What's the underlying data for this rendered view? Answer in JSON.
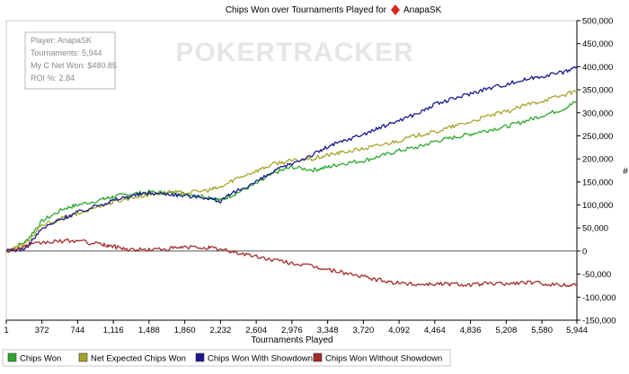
{
  "chart_data": {
    "type": "line",
    "title": "Chips Won over Tournaments Played for",
    "player_name": "AnapaSK",
    "xlabel": "Tournaments Played",
    "ylabel": "#",
    "xlim": [
      1,
      5944
    ],
    "ylim": [
      -150000,
      500000
    ],
    "x_ticks": [
      "1",
      "372",
      "744",
      "1,116",
      "1,488",
      "1,860",
      "2,232",
      "2,604",
      "2,976",
      "3,348",
      "3,720",
      "4,092",
      "4,464",
      "4,836",
      "5,208",
      "5,580",
      "5,944"
    ],
    "y_ticks": [
      "500,000",
      "450,000",
      "400,000",
      "350,000",
      "300,000",
      "250,000",
      "200,000",
      "150,000",
      "100,000",
      "50,000",
      "0",
      "-50,000",
      "-100,000",
      "-150,000"
    ],
    "grid": false,
    "legend_position": "bottom",
    "watermark": "POKERTRACKER",
    "info_box": [
      "Player: AnapaSK",
      "Tournaments: 5,944",
      "My C Net Won: $480.85",
      "ROI %: 2.84"
    ],
    "x": [
      1,
      200,
      372,
      600,
      744,
      1000,
      1116,
      1300,
      1488,
      1700,
      1860,
      2100,
      2232,
      2400,
      2604,
      2800,
      2976,
      3200,
      3348,
      3500,
      3720,
      3900,
      4092,
      4300,
      4464,
      4650,
      4836,
      5000,
      5208,
      5400,
      5580,
      5800,
      5944
    ],
    "series": [
      {
        "name": "Chips Won",
        "color": "#2ea82e",
        "values": [
          0,
          20000,
          65000,
          92000,
          100000,
          112000,
          118000,
          124000,
          128000,
          126000,
          124000,
          118000,
          110000,
          126000,
          146000,
          170000,
          182000,
          176000,
          182000,
          190000,
          196000,
          206000,
          218000,
          226000,
          238000,
          246000,
          254000,
          262000,
          270000,
          282000,
          294000,
          308000,
          325000
        ]
      },
      {
        "name": "Net Expected Chips Won",
        "color": "#a5a52c",
        "values": [
          0,
          15000,
          55000,
          72000,
          80000,
          100000,
          106000,
          116000,
          122000,
          128000,
          126000,
          132000,
          138000,
          158000,
          174000,
          190000,
          196000,
          200000,
          208000,
          214000,
          222000,
          230000,
          240000,
          252000,
          258000,
          270000,
          280000,
          292000,
          302000,
          316000,
          326000,
          338000,
          348000
        ]
      },
      {
        "name": "Chips Won With Showdown",
        "color": "#1a1a8c",
        "values": [
          0,
          5000,
          48000,
          72000,
          84000,
          102000,
          110000,
          120000,
          126000,
          124000,
          120000,
          116000,
          108000,
          130000,
          150000,
          174000,
          190000,
          210000,
          226000,
          238000,
          254000,
          268000,
          284000,
          300000,
          318000,
          330000,
          342000,
          352000,
          362000,
          372000,
          380000,
          388000,
          400000
        ]
      },
      {
        "name": "Chips Won Without Showdown",
        "color": "#a32b2b",
        "values": [
          0,
          10000,
          18000,
          22000,
          22000,
          14000,
          10000,
          3000,
          3000,
          5000,
          8000,
          8000,
          3000,
          -3000,
          -12000,
          -20000,
          -26000,
          -34000,
          -40000,
          -46000,
          -56000,
          -64000,
          -70000,
          -72000,
          -71000,
          -71000,
          -73000,
          -71000,
          -71000,
          -68000,
          -70000,
          -74000,
          -72000
        ]
      }
    ]
  }
}
